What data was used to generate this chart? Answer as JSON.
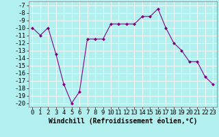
{
  "x": [
    0,
    1,
    2,
    3,
    4,
    5,
    6,
    7,
    8,
    9,
    10,
    11,
    12,
    13,
    14,
    15,
    16,
    17,
    18,
    19,
    20,
    21,
    22,
    23
  ],
  "y": [
    -10,
    -11,
    -10,
    -13.5,
    -17.5,
    -20,
    -18.5,
    -11.5,
    -11.5,
    -11.5,
    -9.5,
    -9.5,
    -9.5,
    -9.5,
    -8.5,
    -8.5,
    -7.5,
    -10,
    -12,
    -13,
    -14.5,
    -14.5,
    -16.5,
    -17.5
  ],
  "line_color": "#800080",
  "marker": "D",
  "marker_size": 2,
  "bg_color": "#b2f0f0",
  "grid_color": "#ffffff",
  "xlabel": "Windchill (Refroidissement éolien,°C)",
  "xlabel_fontsize": 7,
  "tick_fontsize": 6.5,
  "ylim": [
    -20.5,
    -6.5
  ],
  "xlim": [
    -0.5,
    23.5
  ],
  "yticks": [
    -7,
    -8,
    -9,
    -10,
    -11,
    -12,
    -13,
    -14,
    -15,
    -16,
    -17,
    -18,
    -19,
    -20
  ],
  "xticks": [
    0,
    1,
    2,
    3,
    4,
    5,
    6,
    7,
    8,
    9,
    10,
    11,
    12,
    13,
    14,
    15,
    16,
    17,
    18,
    19,
    20,
    21,
    22,
    23
  ]
}
